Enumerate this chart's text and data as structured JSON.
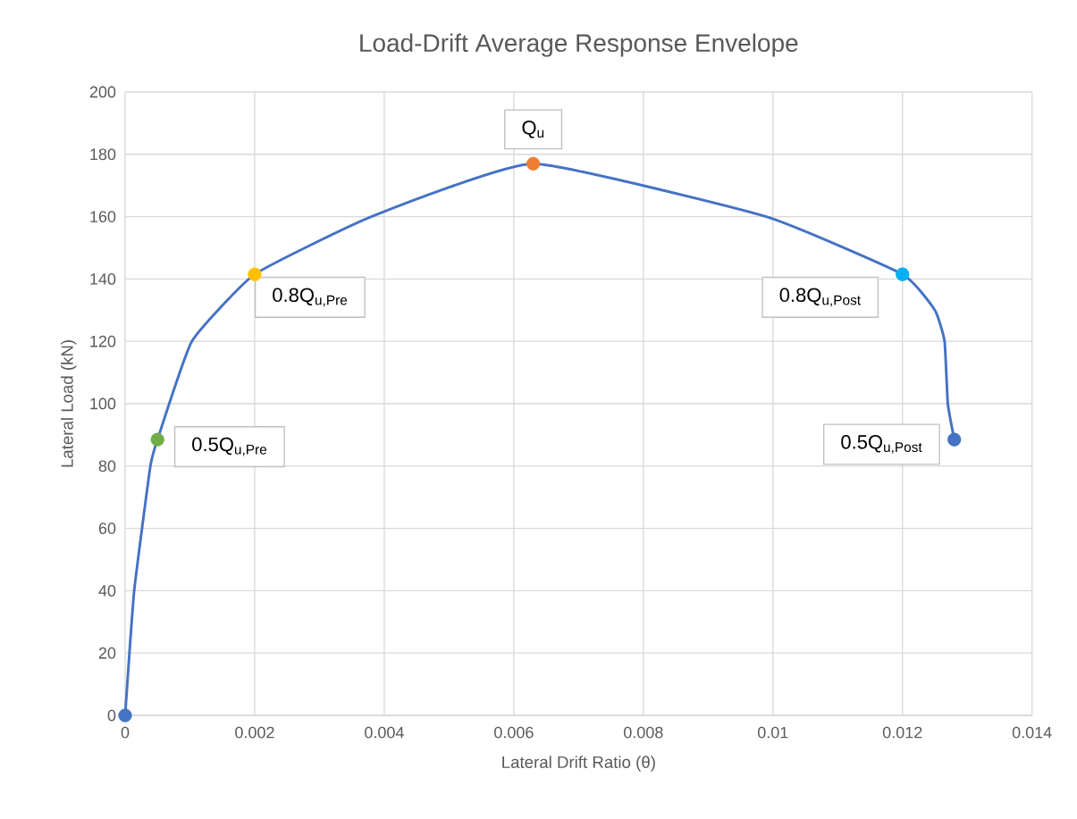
{
  "chart_data": {
    "type": "line",
    "title": "Load-Drift Average Response Envelope",
    "xlabel": "Lateral Drift Ratio (θ)",
    "ylabel": "Lateral Load (kN)",
    "xlim": [
      0,
      0.014
    ],
    "xticks": [
      0,
      0.002,
      0.004,
      0.006,
      0.008,
      0.01,
      0.012,
      0.014
    ],
    "ylim": [
      0,
      200
    ],
    "yticks": [
      0,
      20,
      40,
      60,
      80,
      100,
      120,
      140,
      160,
      180,
      200
    ],
    "grid": true,
    "series": [
      {
        "color": "#4472c4",
        "marker": "none",
        "x": [
          0,
          0.00014,
          0.00039,
          0.0005,
          0.00103,
          0.002,
          0.0038,
          0.0063,
          0.0099,
          0.012,
          0.0125,
          0.01265,
          0.0127,
          0.0128
        ],
        "values": [
          0,
          40,
          80,
          88.5,
          120,
          141.5,
          160,
          177,
          160,
          141.5,
          130,
          120,
          100,
          88.5
        ]
      },
      {
        "type": "scatter",
        "color": "#4472c4",
        "marker": "circle",
        "x": [
          0
        ],
        "values": [
          0
        ]
      },
      {
        "type": "scatter",
        "color": "#70ad47",
        "marker": "circle",
        "x": [
          0.0005
        ],
        "values": [
          88.5
        ]
      },
      {
        "type": "scatter",
        "color": "#ffc000",
        "marker": "circle",
        "x": [
          0.002
        ],
        "values": [
          141.5
        ]
      },
      {
        "type": "scatter",
        "color": "#ed7d31",
        "marker": "circle",
        "x": [
          0.0063
        ],
        "values": [
          177
        ]
      },
      {
        "type": "scatter",
        "color": "#00b0f0",
        "marker": "circle",
        "x": [
          0.012
        ],
        "values": [
          141.5
        ]
      },
      {
        "type": "scatter",
        "color": "#4472c4",
        "marker": "circle",
        "x": [
          0.0128
        ],
        "values": [
          88.5
        ]
      }
    ],
    "annotations": [
      {
        "text": "Q$_{u}$",
        "x": 0.0063,
        "y": 177
      },
      {
        "text": "0.8Q$_{u,Pre}$",
        "x": 0.002,
        "y": 141.5
      },
      {
        "text": "0.8Q$_{u,Post}$",
        "x": 0.012,
        "y": 141.5
      },
      {
        "text": "0.5Q$_{u,Pre}$",
        "x": 0.0005,
        "y": 88.5
      },
      {
        "text": "0.5Q$_{u,Post}$",
        "x": 0.0128,
        "y": 88.5
      }
    ]
  }
}
